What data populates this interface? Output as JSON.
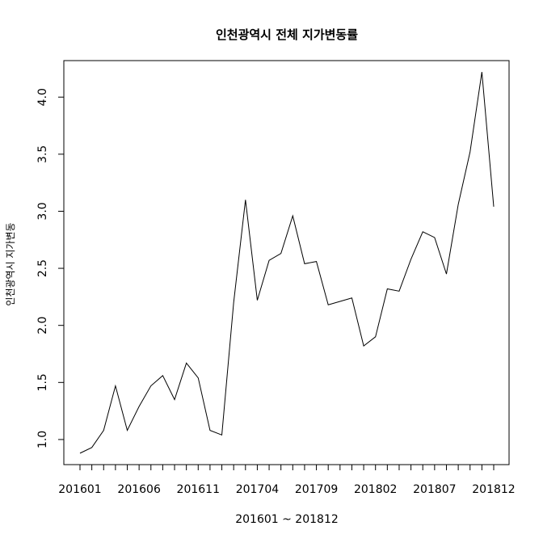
{
  "chart_data": {
    "type": "line",
    "title": "인천광역시 전체 지가변동률",
    "xlabel": "201601 ~ 201812",
    "ylabel": "인천광역시 지가변동",
    "x": [
      "201601",
      "201602",
      "201603",
      "201604",
      "201605",
      "201606",
      "201607",
      "201608",
      "201609",
      "201610",
      "201611",
      "201612",
      "201701",
      "201702",
      "201703",
      "201704",
      "201705",
      "201706",
      "201707",
      "201708",
      "201709",
      "201710",
      "201711",
      "201712",
      "201801",
      "201802",
      "201803",
      "201804",
      "201805",
      "201806",
      "201807",
      "201808",
      "201809",
      "201810",
      "201811",
      "201812"
    ],
    "values": [
      0.88,
      0.93,
      1.08,
      1.47,
      1.08,
      1.29,
      1.47,
      1.56,
      1.35,
      1.67,
      1.54,
      1.08,
      1.04,
      2.2,
      3.1,
      2.22,
      2.57,
      2.63,
      2.96,
      2.54,
      2.56,
      2.18,
      2.21,
      2.24,
      1.82,
      1.9,
      2.32,
      2.3,
      2.58,
      2.82,
      2.77,
      2.45,
      3.06,
      3.52,
      4.22,
      3.04
    ],
    "x_tick_labels": [
      "201601",
      "201606",
      "201611",
      "201704",
      "201709",
      "201802",
      "201807",
      "201812"
    ],
    "x_tick_positions_index": [
      0,
      5,
      10,
      15,
      20,
      25,
      30,
      35
    ],
    "y_ticks": [
      "1.0",
      "1.5",
      "2.0",
      "2.5",
      "3.0",
      "3.5",
      "4.0"
    ],
    "ylim": [
      0.78,
      4.32
    ],
    "grid": false,
    "line_color": "#000000"
  }
}
